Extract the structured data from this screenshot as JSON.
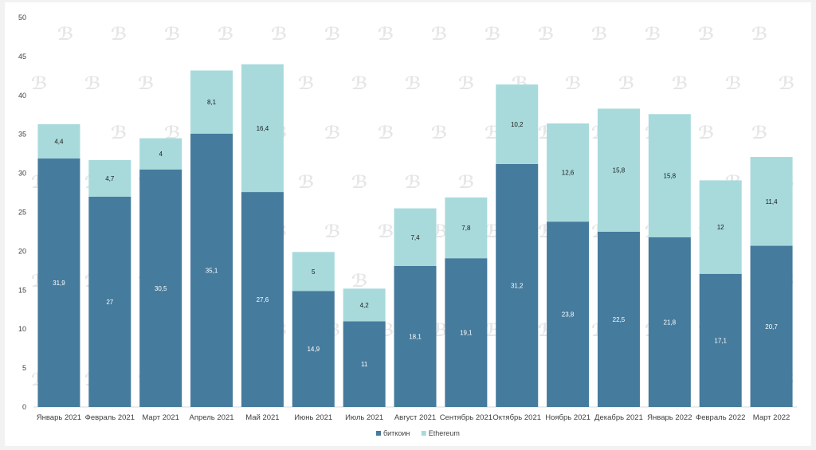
{
  "chart_data": {
    "type": "bar",
    "stacked": true,
    "categories": [
      "Январь 2021",
      "Февраль 2021",
      "Март 2021",
      "Апрель 2021",
      "Май 2021",
      "Июнь 2021",
      "Июль 2021",
      "Август 2021",
      "Сентябрь 2021",
      "Октябрь 2021",
      "Ноябрь 2021",
      "Декабрь 2021",
      "Январь 2022",
      "Февраль 2022",
      "Март 2022"
    ],
    "series": [
      {
        "name": "биткоин",
        "color": "#457b9d",
        "values": [
          31.9,
          27,
          30.5,
          35.1,
          27.6,
          14.9,
          11,
          18.1,
          19.1,
          31.2,
          23.8,
          22.5,
          21.8,
          17.1,
          20.7
        ],
        "labels": [
          "31,9",
          "27",
          "30,5",
          "35,1",
          "27,6",
          "14,9",
          "11",
          "18,1",
          "19,1",
          "31,2",
          "23,8",
          "22,5",
          "21,8",
          "17,1",
          "20,7"
        ]
      },
      {
        "name": "Ethereum",
        "color": "#a8dadc",
        "values": [
          4.4,
          4.7,
          4,
          8.1,
          16.4,
          5,
          4.2,
          7.4,
          7.8,
          10.2,
          12.6,
          15.8,
          15.8,
          12,
          11.4
        ],
        "labels": [
          "4,4",
          "4,7",
          "4",
          "8,1",
          "16,4",
          "5",
          "4,2",
          "7,4",
          "7,8",
          "10,2",
          "12,6",
          "15,8",
          "15,8",
          "12",
          "11,4"
        ]
      }
    ],
    "yticks": [
      0,
      5,
      10,
      15,
      20,
      25,
      30,
      35,
      40,
      45,
      50
    ],
    "ylim": [
      0,
      50
    ],
    "legend_position": "bottom-center"
  }
}
